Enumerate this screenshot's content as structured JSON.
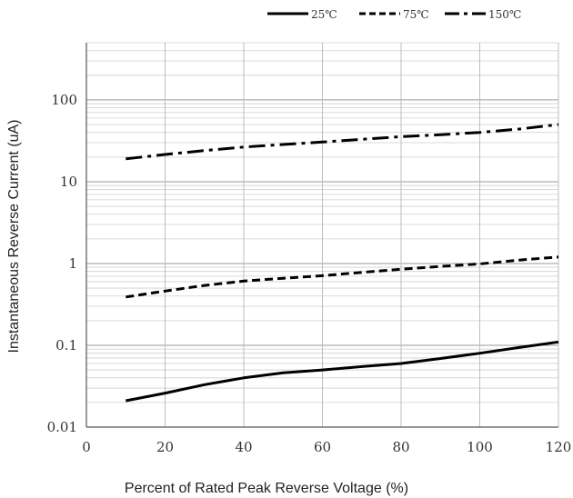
{
  "chart_data": {
    "type": "line",
    "title": "",
    "xlabel": "Percent of Rated Peak  Reverse Voltage (%)",
    "ylabel": "Instantaneous Reverse Current (uA)",
    "xlim": [
      0,
      120
    ],
    "ylim": [
      0.01,
      500
    ],
    "yscale": "log",
    "grid": true,
    "legend_position": "top-right",
    "x_ticks": [
      0,
      20,
      40,
      60,
      80,
      100,
      120
    ],
    "x_tick_labels": [
      "0",
      "20",
      "40",
      "60",
      "80",
      "100",
      "120"
    ],
    "y_ticks": [
      0.01,
      0.1,
      1,
      10,
      100
    ],
    "y_tick_labels": [
      "0.01",
      "0.1",
      "1",
      "10",
      "100"
    ],
    "series": [
      {
        "name": "25℃",
        "style": "solid",
        "color": "#000000",
        "x": [
          10,
          20,
          30,
          40,
          50,
          60,
          70,
          80,
          90,
          100,
          110,
          120
        ],
        "y": [
          0.021,
          0.026,
          0.033,
          0.04,
          0.046,
          0.05,
          0.055,
          0.06,
          0.069,
          0.08,
          0.094,
          0.11
        ]
      },
      {
        "name": "75℃",
        "style": "dashed",
        "color": "#000000",
        "x": [
          10,
          20,
          30,
          40,
          50,
          60,
          70,
          80,
          90,
          100,
          110,
          120
        ],
        "y": [
          0.39,
          0.46,
          0.54,
          0.61,
          0.66,
          0.71,
          0.78,
          0.85,
          0.92,
          0.99,
          1.1,
          1.2
        ]
      },
      {
        "name": "150℃",
        "style": "dashdot",
        "color": "#000000",
        "x": [
          10,
          20,
          30,
          40,
          50,
          60,
          70,
          80,
          90,
          100,
          110,
          120
        ],
        "y": [
          19,
          21.5,
          24,
          26.5,
          28.5,
          30.5,
          33,
          35.5,
          37.5,
          40,
          44,
          50
        ]
      }
    ]
  }
}
